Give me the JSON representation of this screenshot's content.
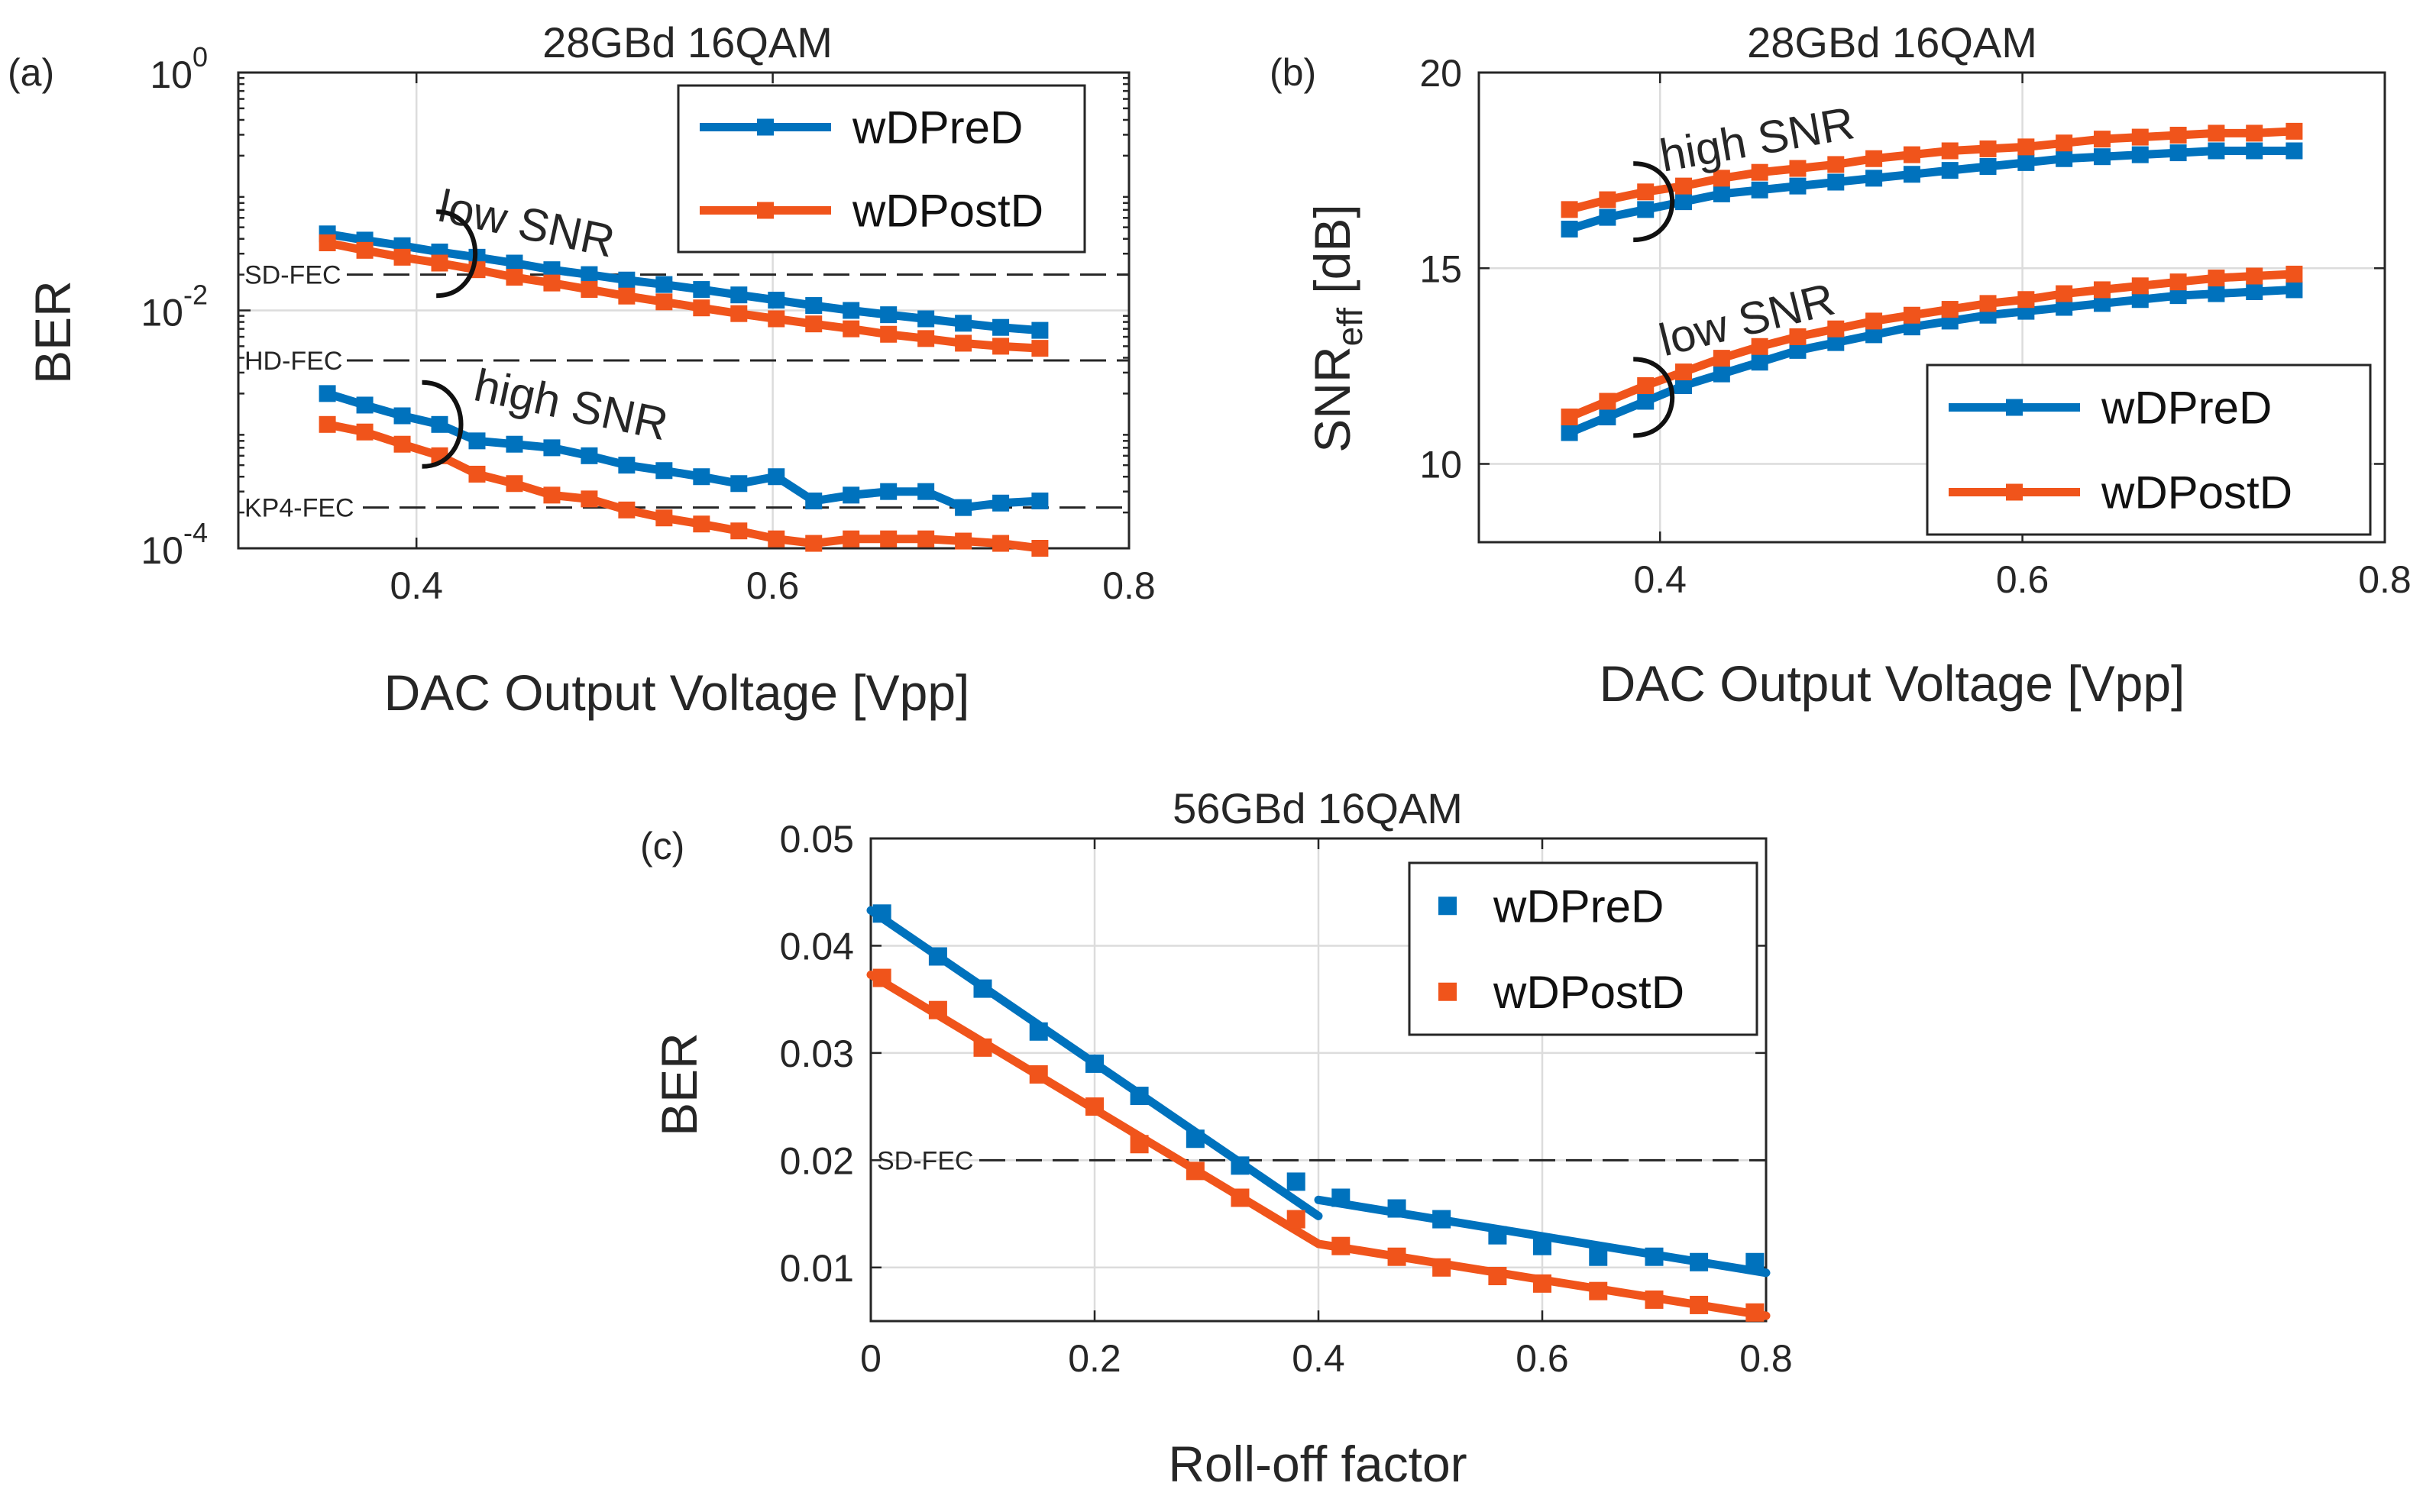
{
  "colors": {
    "blue": "#0072BD",
    "orange": "#F0541B"
  },
  "chart_data": [
    {
      "id": "a",
      "panel_label": "(a)",
      "type": "line",
      "title": "28GBd 16QAM",
      "xlabel": "DAC Output Voltage [Vpp]",
      "ylabel": "BER",
      "yscale": "log",
      "xlim": [
        0.3,
        0.8
      ],
      "ylim": [
        0.0001,
        1
      ],
      "xticks": [
        0.4,
        0.6,
        0.8
      ],
      "xtick_labels": [
        "0.4",
        "0.6",
        "0.8"
      ],
      "yticks": [
        {
          "value": 1,
          "base": "10",
          "exp": "0"
        },
        {
          "value": 0.01,
          "base": "10",
          "exp": "-2"
        },
        {
          "value": 0.0001,
          "base": "10",
          "exp": "-4"
        }
      ],
      "thresholds": [
        {
          "label": "SD-FEC",
          "value": 0.02
        },
        {
          "label": "HD-FEC",
          "value": 0.0038
        },
        {
          "label": "KP4-FEC",
          "value": 0.00022
        }
      ],
      "annotations": [
        {
          "text": "low SNR",
          "x": 0.46,
          "y": 0.04,
          "rotate": 12
        },
        {
          "text": "high SNR",
          "x": 0.485,
          "y": 0.0012,
          "rotate": 12
        }
      ],
      "x": [
        0.35,
        0.371,
        0.392,
        0.413,
        0.434,
        0.455,
        0.476,
        0.497,
        0.518,
        0.539,
        0.56,
        0.581,
        0.602,
        0.623,
        0.644,
        0.665,
        0.686,
        0.707,
        0.728,
        0.75
      ],
      "series": [
        {
          "name": "wDPreD",
          "color_key": "blue",
          "group": "low SNR",
          "show_in_legend": true,
          "values": [
            0.044,
            0.039,
            0.035,
            0.031,
            0.028,
            0.025,
            0.022,
            0.02,
            0.018,
            0.0165,
            0.015,
            0.0135,
            0.0122,
            0.011,
            0.01,
            0.0092,
            0.0085,
            0.0078,
            0.0072,
            0.0068
          ]
        },
        {
          "name": "wDPostD",
          "color_key": "orange",
          "group": "low SNR",
          "show_in_legend": true,
          "values": [
            0.037,
            0.032,
            0.028,
            0.025,
            0.022,
            0.019,
            0.017,
            0.015,
            0.0132,
            0.0118,
            0.0105,
            0.0094,
            0.0085,
            0.0077,
            0.007,
            0.0063,
            0.0058,
            0.0053,
            0.005,
            0.0048
          ]
        },
        {
          "name": "wDPreD",
          "color_key": "blue",
          "group": "high SNR",
          "show_in_legend": false,
          "values": [
            0.002,
            0.0016,
            0.0013,
            0.0011,
            0.0008,
            0.00075,
            0.0007,
            0.0006,
            0.0005,
            0.00045,
            0.0004,
            0.00035,
            0.0004,
            0.00025,
            0.00028,
            0.0003,
            0.0003,
            0.00022,
            0.00024,
            0.00025
          ]
        },
        {
          "name": "wDPostD",
          "color_key": "orange",
          "group": "high SNR",
          "show_in_legend": false,
          "values": [
            0.0011,
            0.00095,
            0.00075,
            0.0006,
            0.00042,
            0.00035,
            0.00028,
            0.00026,
            0.00021,
            0.00018,
            0.00016,
            0.00014,
            0.00012,
            0.00011,
            0.00012,
            0.00012,
            0.00012,
            0.000115,
            0.00011,
            0.0001
          ]
        }
      ],
      "legend": {
        "position": "top-right",
        "entries": [
          "wDPreD",
          "wDPostD"
        ],
        "style": "line+marker"
      }
    },
    {
      "id": "b",
      "panel_label": "(b)",
      "type": "line",
      "title": "28GBd 16QAM",
      "xlabel": "DAC Output Voltage [Vpp]",
      "ylabel_main": "SNR",
      "ylabel_sub": "eff",
      "ylabel_unit": " [dB]",
      "yscale": "linear",
      "xlim": [
        0.3,
        0.8
      ],
      "ylim": [
        8,
        20
      ],
      "xticks": [
        0.4,
        0.6,
        0.8
      ],
      "xtick_labels": [
        "0.4",
        "0.6",
        "0.8"
      ],
      "yticks": [
        10,
        15,
        20
      ],
      "ytick_labels": [
        "10",
        "15",
        "20"
      ],
      "annotations": [
        {
          "text": "high SNR",
          "x": 0.455,
          "y": 17.9,
          "rotate": -10
        },
        {
          "text": "low SNR",
          "x": 0.45,
          "y": 13.3,
          "rotate": -14
        }
      ],
      "x": [
        0.35,
        0.371,
        0.392,
        0.413,
        0.434,
        0.455,
        0.476,
        0.497,
        0.518,
        0.539,
        0.56,
        0.581,
        0.602,
        0.623,
        0.644,
        0.665,
        0.686,
        0.707,
        0.728,
        0.75
      ],
      "series": [
        {
          "name": "wDPreD",
          "color_key": "blue",
          "group": "high SNR",
          "show_in_legend": false,
          "values": [
            16.0,
            16.3,
            16.5,
            16.7,
            16.9,
            17.0,
            17.1,
            17.2,
            17.3,
            17.4,
            17.5,
            17.6,
            17.7,
            17.8,
            17.85,
            17.9,
            17.95,
            18.0,
            18.0,
            18.0
          ]
        },
        {
          "name": "wDPostD",
          "color_key": "orange",
          "group": "high SNR",
          "show_in_legend": false,
          "values": [
            16.5,
            16.75,
            16.95,
            17.1,
            17.3,
            17.45,
            17.55,
            17.65,
            17.8,
            17.9,
            18.0,
            18.05,
            18.1,
            18.2,
            18.3,
            18.35,
            18.4,
            18.45,
            18.45,
            18.5
          ]
        },
        {
          "name": "wDPreD",
          "color_key": "blue",
          "group": "low SNR",
          "show_in_legend": true,
          "values": [
            10.8,
            11.2,
            11.6,
            12.0,
            12.3,
            12.6,
            12.9,
            13.1,
            13.3,
            13.5,
            13.65,
            13.8,
            13.9,
            14.0,
            14.1,
            14.2,
            14.3,
            14.35,
            14.4,
            14.45
          ]
        },
        {
          "name": "wDPostD",
          "color_key": "orange",
          "group": "low SNR",
          "show_in_legend": true,
          "values": [
            11.2,
            11.6,
            12.0,
            12.35,
            12.7,
            13.0,
            13.25,
            13.45,
            13.65,
            13.8,
            13.95,
            14.1,
            14.2,
            14.35,
            14.45,
            14.55,
            14.65,
            14.75,
            14.8,
            14.85
          ]
        }
      ],
      "legend": {
        "position": "bottom-right",
        "entries": [
          "wDPreD",
          "wDPostD"
        ],
        "style": "line+marker"
      }
    },
    {
      "id": "c",
      "panel_label": "(c)",
      "type": "scatter",
      "title": "56GBd 16QAM",
      "xlabel": "Roll-off factor",
      "ylabel": "BER",
      "yscale": "linear",
      "xlim": [
        0,
        0.8
      ],
      "ylim": [
        0.005,
        0.05
      ],
      "xticks": [
        0,
        0.2,
        0.4,
        0.6,
        0.8
      ],
      "xtick_labels": [
        "0",
        "0.2",
        "0.4",
        "0.6",
        "0.8"
      ],
      "yticks": [
        0.01,
        0.02,
        0.03,
        0.04,
        0.05
      ],
      "ytick_labels": [
        "0.01",
        "0.02",
        "0.03",
        "0.04",
        "0.05"
      ],
      "thresholds": [
        {
          "label": "SD-FEC",
          "value": 0.02
        }
      ],
      "x": [
        0.01,
        0.06,
        0.1,
        0.15,
        0.2,
        0.24,
        0.29,
        0.33,
        0.38,
        0.42,
        0.47,
        0.51,
        0.56,
        0.6,
        0.65,
        0.7,
        0.74,
        0.79
      ],
      "series": [
        {
          "name": "wDPreD",
          "color_key": "blue",
          "show_in_legend": true,
          "values": [
            0.043,
            0.039,
            0.036,
            0.032,
            0.029,
            0.026,
            0.022,
            0.0195,
            0.018,
            0.0165,
            0.0155,
            0.0145,
            0.013,
            0.012,
            0.011,
            0.011,
            0.0105,
            0.0105
          ],
          "fit_segments": [
            [
              [
                0.0,
                0.0433
              ],
              [
                0.4,
                0.0148
              ]
            ],
            [
              [
                0.4,
                0.0163
              ],
              [
                0.8,
                0.0095
              ]
            ]
          ]
        },
        {
          "name": "wDPostD",
          "color_key": "orange",
          "show_in_legend": true,
          "values": [
            0.037,
            0.034,
            0.0305,
            0.028,
            0.025,
            0.0215,
            0.019,
            0.0165,
            0.0145,
            0.012,
            0.011,
            0.01,
            0.0092,
            0.0085,
            0.0078,
            0.007,
            0.0065,
            0.0058
          ],
          "fit_segments": [
            [
              [
                0.0,
                0.0373
              ],
              [
                0.4,
                0.0122
              ],
              [
                0.8,
                0.0055
              ]
            ]
          ]
        }
      ],
      "legend": {
        "position": "top-right",
        "entries": [
          "wDPreD",
          "wDPostD"
        ],
        "style": "marker"
      }
    }
  ]
}
